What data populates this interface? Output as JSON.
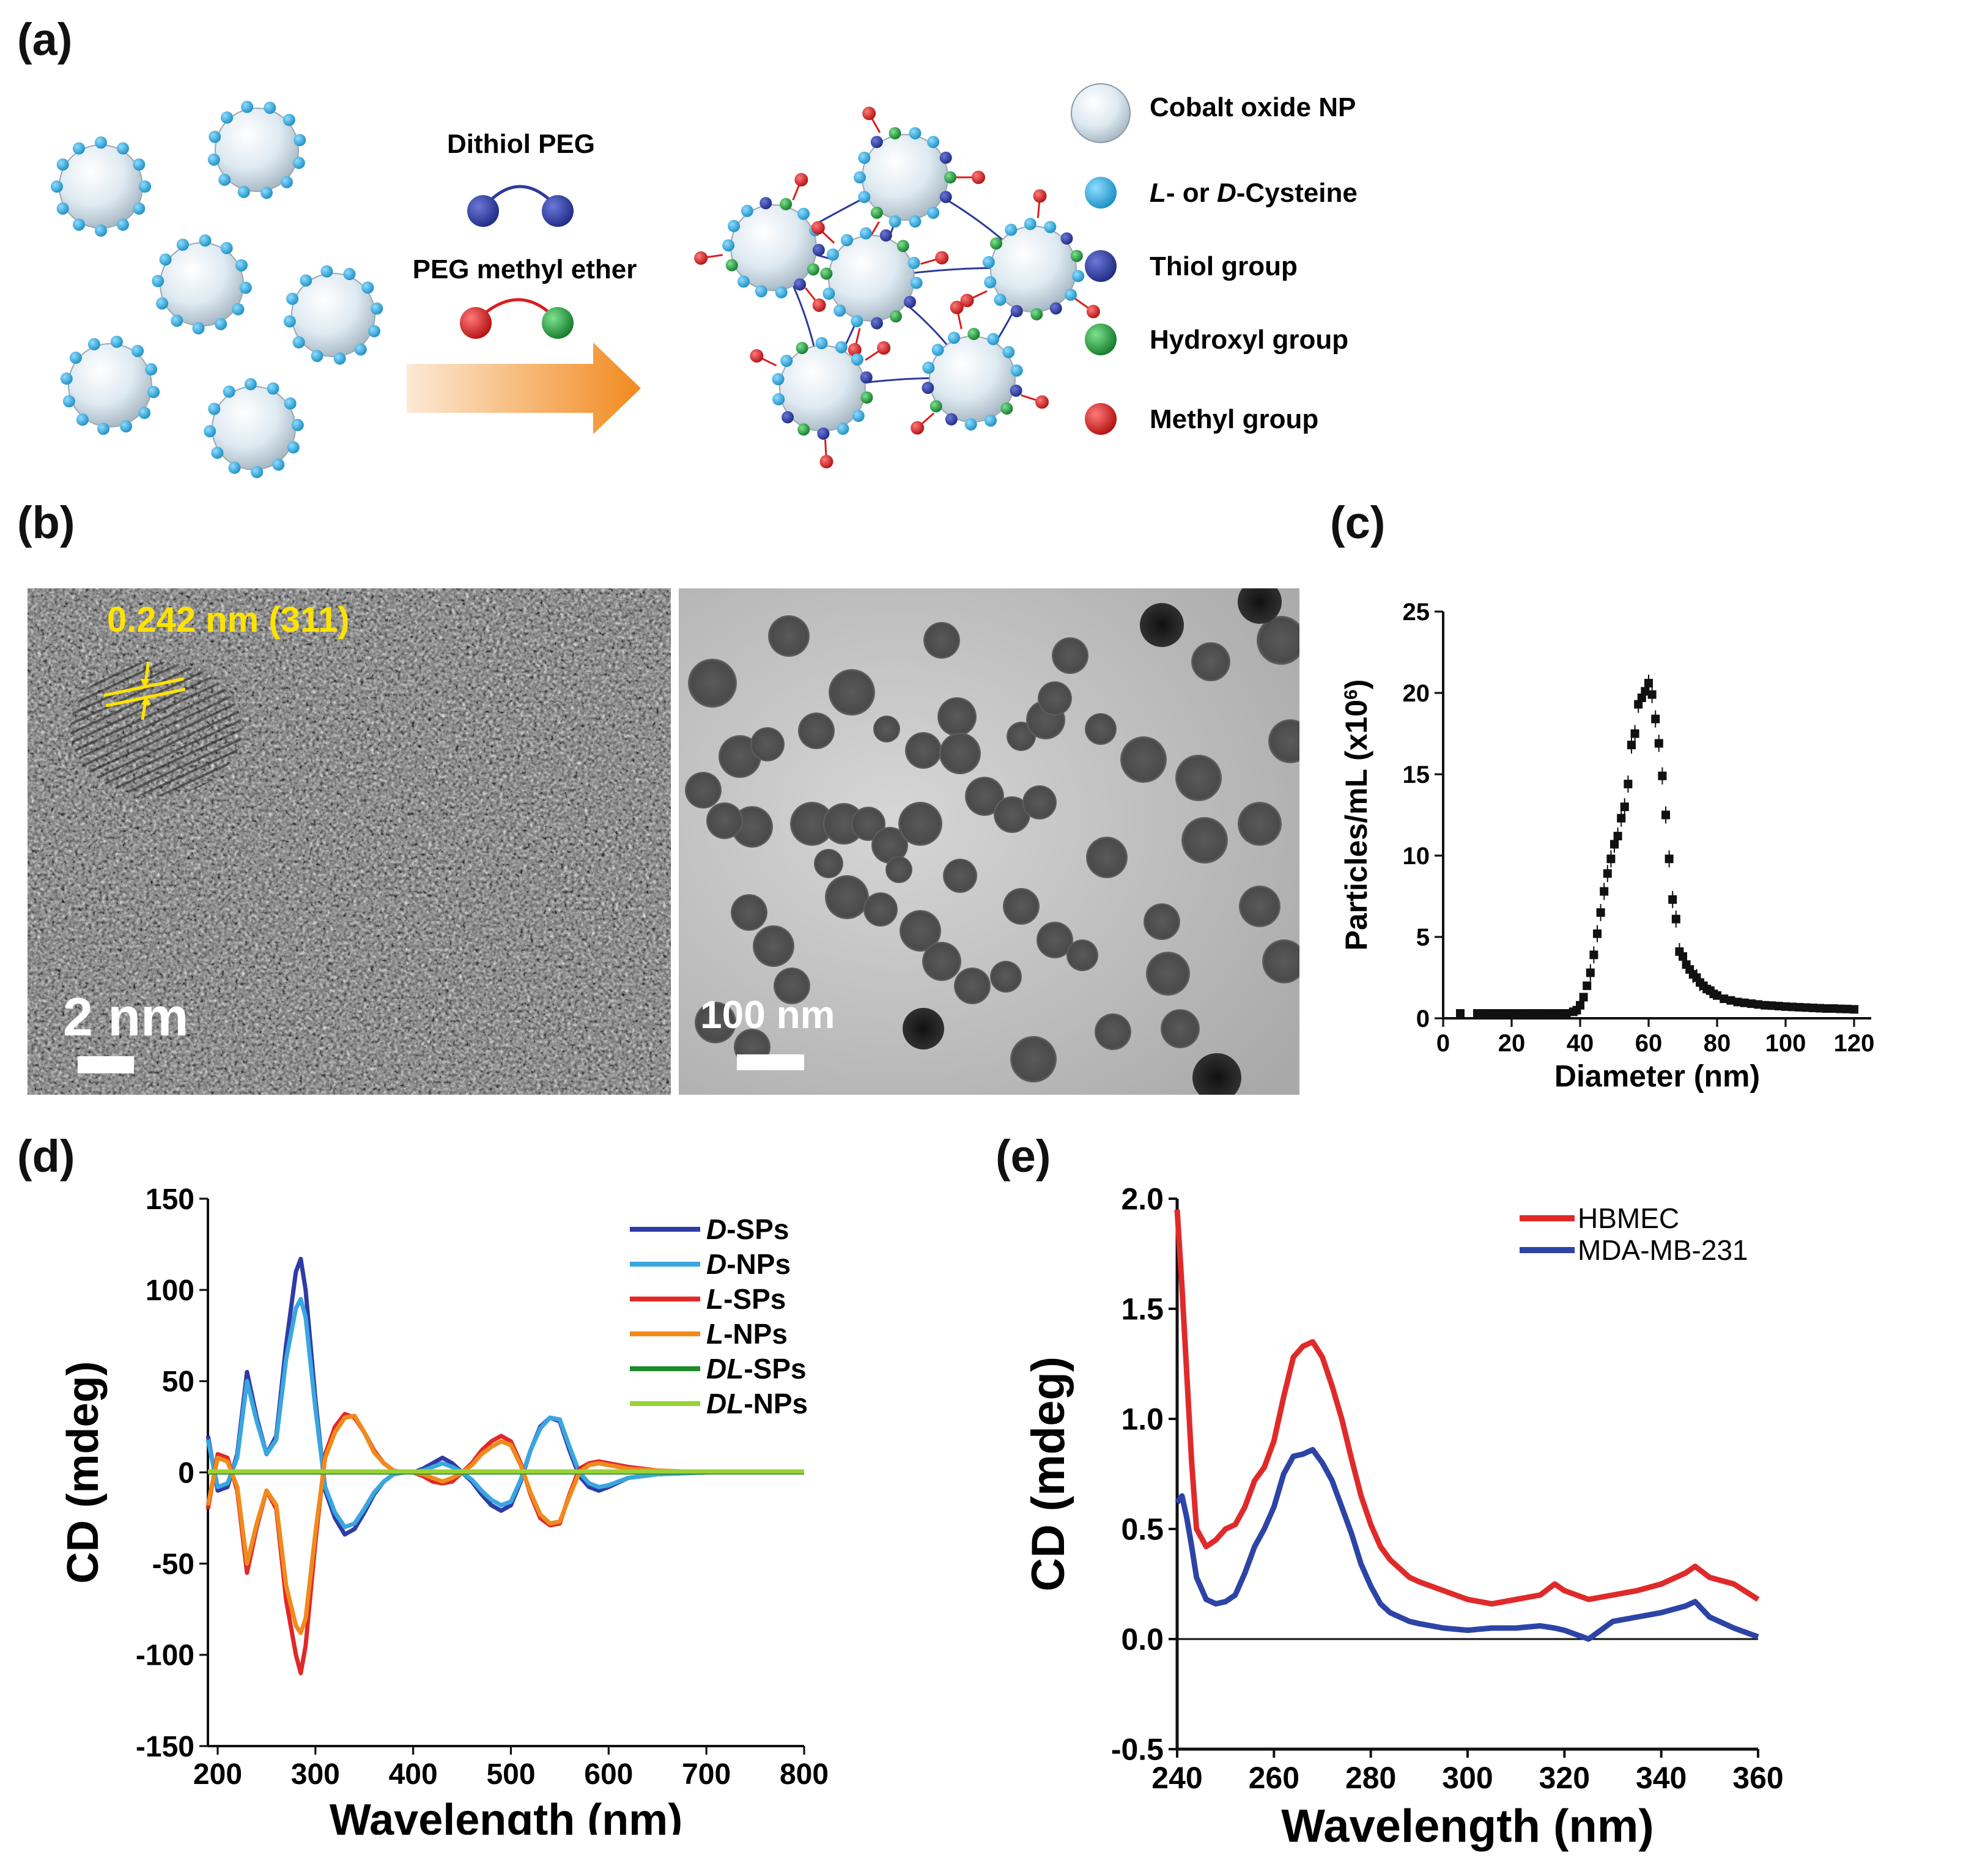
{
  "panel_labels": {
    "a": "(a)",
    "b": "(b)",
    "c": "(c)",
    "d": "(d)",
    "e": "(e)"
  },
  "scheme": {
    "reagent1": "Dithiol PEG",
    "reagent2": "PEG methyl ether",
    "legend": [
      {
        "label": "Cobalt oxide NP",
        "color": "#dfeaf2"
      },
      {
        "label_prefix": "L",
        "label_mid": "- or ",
        "label_d": "D",
        "label_suffix": "-Cysteine",
        "color": "#2aa8dc"
      },
      {
        "label": "Thiol group",
        "color": "#2d3a9a"
      },
      {
        "label": "Hydroxyl group",
        "color": "#1e9a3c"
      },
      {
        "label": "Methyl group",
        "color": "#d81e1e"
      }
    ]
  },
  "micrographs": {
    "hrtem_lattice": "0.242 nm (311)",
    "hrtem_scale": "2 nm",
    "tem_scale": "100 nm"
  },
  "chart_data": [
    {
      "panel": "c",
      "type": "scatter",
      "title": "",
      "xlabel": "Diameter (nm)",
      "ylabel": "Particles/mL (x10",
      "ylabel_sup": "6",
      "ylabel_close": ")",
      "xlim": [
        0,
        125
      ],
      "ylim": [
        0,
        25
      ],
      "xticks": [
        "0",
        "20",
        "40",
        "60",
        "80",
        "100",
        "120"
      ],
      "yticks": [
        "0",
        "5",
        "10",
        "15",
        "20",
        "25"
      ],
      "x": [
        5,
        10,
        12,
        14,
        16,
        18,
        20,
        22,
        24,
        26,
        28,
        30,
        32,
        34,
        36,
        38,
        39,
        40,
        41,
        42,
        43,
        44,
        45,
        46,
        47,
        48,
        49,
        50,
        51,
        52,
        53,
        54,
        55,
        56,
        57,
        58,
        59,
        60,
        61,
        62,
        63,
        64,
        65,
        66,
        67,
        68,
        69,
        70,
        71,
        72,
        73,
        74,
        75,
        76,
        77,
        78,
        79,
        80,
        82,
        84,
        86,
        88,
        90,
        92,
        94,
        96,
        98,
        100,
        102,
        104,
        106,
        108,
        110,
        112,
        114,
        116,
        118,
        120
      ],
      "y": [
        0.3,
        0.3,
        0.3,
        0.3,
        0.3,
        0.3,
        0.3,
        0.3,
        0.3,
        0.3,
        0.3,
        0.3,
        0.3,
        0.3,
        0.3,
        0.4,
        0.5,
        0.8,
        1.3,
        2.0,
        2.8,
        3.9,
        5.2,
        6.5,
        7.8,
        8.9,
        9.8,
        10.7,
        11.2,
        12.3,
        13.0,
        14.4,
        16.8,
        17.5,
        19.3,
        19.7,
        20.1,
        20.6,
        19.9,
        18.4,
        16.9,
        14.9,
        12.5,
        9.8,
        7.3,
        6.1,
        4.1,
        3.8,
        3.3,
        3.0,
        2.7,
        2.5,
        2.2,
        2.0,
        1.8,
        1.7,
        1.5,
        1.4,
        1.2,
        1.1,
        1.0,
        0.95,
        0.9,
        0.85,
        0.8,
        0.78,
        0.75,
        0.72,
        0.7,
        0.68,
        0.66,
        0.64,
        0.62,
        0.6,
        0.6,
        0.58,
        0.57,
        0.55
      ]
    },
    {
      "panel": "d",
      "type": "line",
      "title": "",
      "xlabel": "Wavelength (nm)",
      "ylabel": "CD (mdeg)",
      "xlim": [
        190,
        800
      ],
      "ylim": [
        -150,
        150
      ],
      "xticks": [
        "200",
        "300",
        "400",
        "500",
        "600",
        "700",
        "800"
      ],
      "yticks": [
        "150",
        "100",
        "50",
        "0",
        "-50",
        "-100",
        "-150"
      ],
      "x": [
        190,
        200,
        210,
        220,
        230,
        240,
        250,
        260,
        270,
        280,
        285,
        290,
        300,
        310,
        320,
        330,
        340,
        350,
        360,
        370,
        380,
        390,
        400,
        410,
        420,
        430,
        440,
        450,
        460,
        470,
        480,
        490,
        500,
        510,
        520,
        530,
        540,
        550,
        560,
        570,
        580,
        590,
        600,
        620,
        650,
        700,
        750,
        800
      ],
      "series": [
        {
          "name": "D-SPs",
          "italic": "D",
          "suffix": "-SPs",
          "color": "#2e3ca6",
          "values": [
            20,
            -10,
            -8,
            10,
            55,
            30,
            10,
            20,
            70,
            110,
            117,
            100,
            40,
            -10,
            -25,
            -34,
            -31,
            -22,
            -12,
            -5,
            -1,
            0,
            0,
            2,
            5,
            8,
            5,
            0,
            -5,
            -12,
            -18,
            -21,
            -18,
            -5,
            12,
            25,
            30,
            28,
            12,
            -2,
            -8,
            -10,
            -8,
            -3,
            -1,
            0,
            0,
            0
          ]
        },
        {
          "name": "D-NPs",
          "italic": "D",
          "suffix": "-NPs",
          "color": "#3aa6e0",
          "values": [
            18,
            -8,
            -6,
            8,
            50,
            28,
            10,
            18,
            62,
            90,
            95,
            85,
            35,
            -8,
            -22,
            -30,
            -28,
            -20,
            -11,
            -5,
            -1,
            0,
            0,
            1,
            3,
            5,
            3,
            0,
            -4,
            -10,
            -15,
            -18,
            -16,
            -4,
            12,
            24,
            30,
            29,
            14,
            0,
            -6,
            -8,
            -7,
            -3,
            -1,
            0,
            0,
            0
          ]
        },
        {
          "name": "L-SPs",
          "italic": "L",
          "suffix": "-SPs",
          "color": "#e02828",
          "values": [
            -20,
            10,
            8,
            -10,
            -55,
            -30,
            -10,
            -20,
            -70,
            -100,
            -110,
            -95,
            -38,
            10,
            25,
            32,
            30,
            22,
            12,
            5,
            1,
            0,
            0,
            -2,
            -5,
            -6,
            -5,
            0,
            5,
            12,
            17,
            20,
            17,
            5,
            -12,
            -25,
            -29,
            -28,
            -12,
            2,
            5,
            6,
            5,
            3,
            1,
            0,
            0,
            0
          ]
        },
        {
          "name": "L-NPs",
          "italic": "L",
          "suffix": "-NPs",
          "color": "#f08a1c",
          "values": [
            -18,
            8,
            6,
            -8,
            -50,
            -28,
            -10,
            -18,
            -62,
            -84,
            -88,
            -80,
            -33,
            8,
            22,
            30,
            31,
            22,
            11,
            5,
            1,
            0,
            0,
            -1,
            -3,
            -5,
            -3,
            0,
            4,
            10,
            14,
            17,
            15,
            4,
            -11,
            -23,
            -28,
            -27,
            -13,
            0,
            4,
            5,
            4,
            2,
            1,
            0,
            0,
            0
          ]
        },
        {
          "name": "DL-SPs",
          "italic": "DL",
          "suffix": "-SPs",
          "color": "#1e8a2a",
          "values": [
            0,
            0,
            0,
            0,
            0,
            0,
            0,
            0,
            0,
            0,
            0,
            0,
            0,
            0,
            0,
            0,
            0,
            0,
            0,
            0,
            0,
            0,
            0,
            0,
            0,
            0,
            0,
            0,
            0,
            0,
            0,
            0,
            0,
            0,
            0,
            0,
            0,
            0,
            0,
            0,
            0,
            0,
            0,
            0,
            0,
            0,
            0,
            0
          ]
        },
        {
          "name": "DL-NPs",
          "italic": "DL",
          "suffix": "-NPs",
          "color": "#9ad234",
          "values": [
            0.5,
            0.5,
            0.5,
            0.5,
            0.5,
            0.5,
            0.5,
            0.5,
            0.5,
            0.5,
            0.5,
            0.5,
            0.5,
            0.5,
            0.5,
            0.5,
            0.5,
            0.5,
            0.5,
            0.5,
            0.5,
            0.5,
            0.5,
            0.5,
            0.5,
            0.5,
            0.5,
            0.5,
            0.5,
            0.5,
            0.5,
            0.5,
            0.5,
            0.5,
            0.5,
            0.5,
            0.5,
            0.5,
            0.5,
            0.5,
            0.5,
            0.5,
            0.5,
            0.5,
            0.5,
            0.5,
            0.5,
            0.5
          ]
        }
      ]
    },
    {
      "panel": "e",
      "type": "line",
      "title": "",
      "xlabel": "Wavelength (nm)",
      "ylabel": "CD (mdeg)",
      "xlim": [
        240,
        360
      ],
      "ylim": [
        -0.5,
        2.0
      ],
      "xticks": [
        "240",
        "260",
        "280",
        "300",
        "320",
        "340",
        "360"
      ],
      "yticks": [
        "2.0",
        "1.5",
        "1.0",
        "0.5",
        "0.0",
        "-0.5"
      ],
      "x": [
        240,
        241,
        242,
        243,
        244,
        246,
        248,
        250,
        252,
        254,
        256,
        258,
        260,
        262,
        264,
        266,
        268,
        270,
        272,
        274,
        276,
        278,
        280,
        282,
        284,
        286,
        288,
        290,
        295,
        300,
        305,
        310,
        315,
        318,
        320,
        325,
        330,
        335,
        340,
        345,
        347,
        350,
        355,
        360
      ],
      "series": [
        {
          "name": "HBMEC",
          "color": "#e02a2a",
          "values": [
            1.95,
            1.6,
            1.2,
            0.8,
            0.5,
            0.42,
            0.45,
            0.5,
            0.52,
            0.6,
            0.72,
            0.78,
            0.9,
            1.1,
            1.28,
            1.33,
            1.35,
            1.28,
            1.15,
            1.0,
            0.82,
            0.65,
            0.52,
            0.42,
            0.36,
            0.32,
            0.28,
            0.26,
            0.22,
            0.18,
            0.16,
            0.18,
            0.2,
            0.25,
            0.22,
            0.18,
            0.2,
            0.22,
            0.25,
            0.3,
            0.33,
            0.28,
            0.25,
            0.18
          ]
        },
        {
          "name": "MDA-MB-231",
          "color": "#2d44a6",
          "values": [
            0.62,
            0.65,
            0.55,
            0.42,
            0.28,
            0.18,
            0.16,
            0.17,
            0.2,
            0.3,
            0.42,
            0.5,
            0.6,
            0.75,
            0.83,
            0.84,
            0.86,
            0.8,
            0.72,
            0.6,
            0.48,
            0.34,
            0.24,
            0.16,
            0.12,
            0.1,
            0.08,
            0.07,
            0.05,
            0.04,
            0.05,
            0.05,
            0.06,
            0.05,
            0.04,
            0.0,
            0.08,
            0.1,
            0.12,
            0.15,
            0.17,
            0.1,
            0.05,
            0.01
          ]
        }
      ]
    }
  ]
}
